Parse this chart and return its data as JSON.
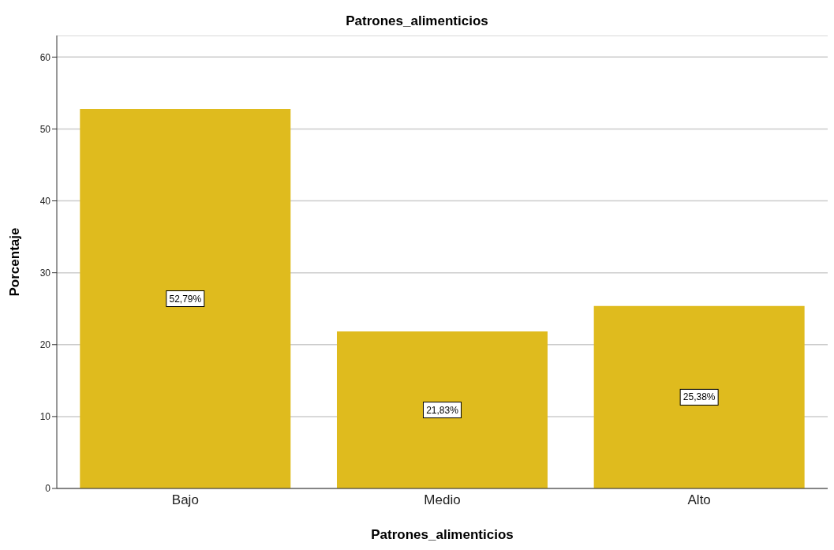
{
  "chart_data": {
    "type": "bar",
    "title": "Patrones_alimenticios",
    "xlabel": "Patrones_alimenticios",
    "ylabel": "Porcentaje",
    "categories": [
      "Bajo",
      "Medio",
      "Alto"
    ],
    "values": [
      52.79,
      21.83,
      25.38
    ],
    "value_labels": [
      "52,79%",
      "21,83%",
      "25,38%"
    ],
    "color": "#dfbb1e",
    "ylim": [
      0,
      63
    ],
    "yticks": [
      0,
      10,
      20,
      30,
      40,
      50,
      60
    ],
    "grid": "y"
  }
}
